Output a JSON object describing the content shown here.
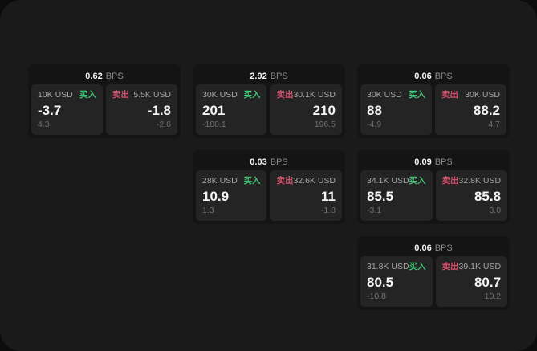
{
  "labels": {
    "bps_unit": "BPS",
    "buy": "买入",
    "sell": "卖出"
  },
  "colors": {
    "buy_green": "#3cc271",
    "sell_red": "#d6506e",
    "window_bg": "#1a1a1a",
    "card_bg": "#141414",
    "panel_bg": "#242424"
  },
  "cards": [
    {
      "bps": "0.62",
      "buy": {
        "amount": "10K USD",
        "value": "-3.7",
        "sub": "4.3"
      },
      "sell": {
        "amount": "5.5K USD",
        "value": "-1.8",
        "sub": "-2.6"
      }
    },
    {
      "bps": "2.92",
      "buy": {
        "amount": "30K USD",
        "value": "201",
        "sub": "-188.1"
      },
      "sell": {
        "amount": "30.1K USD",
        "value": "210",
        "sub": "196.5"
      }
    },
    {
      "bps": "0.06",
      "buy": {
        "amount": "30K USD",
        "value": "88",
        "sub": "-4.9"
      },
      "sell": {
        "amount": "30K USD",
        "value": "88.2",
        "sub": "4.7"
      }
    },
    {
      "bps": "0.03",
      "buy": {
        "amount": "28K USD",
        "value": "10.9",
        "sub": "1.3"
      },
      "sell": {
        "amount": "32.6K USD",
        "value": "11",
        "sub": "-1.8"
      }
    },
    {
      "bps": "0.09",
      "buy": {
        "amount": "34.1K USD",
        "value": "85.5",
        "sub": "-3.1"
      },
      "sell": {
        "amount": "32.8K USD",
        "value": "85.8",
        "sub": "3.0"
      }
    },
    {
      "bps": "0.06",
      "buy": {
        "amount": "31.8K USD",
        "value": "80.5",
        "sub": "-10.8"
      },
      "sell": {
        "amount": "39.1K USD",
        "value": "80.7",
        "sub": "10.2"
      }
    }
  ]
}
